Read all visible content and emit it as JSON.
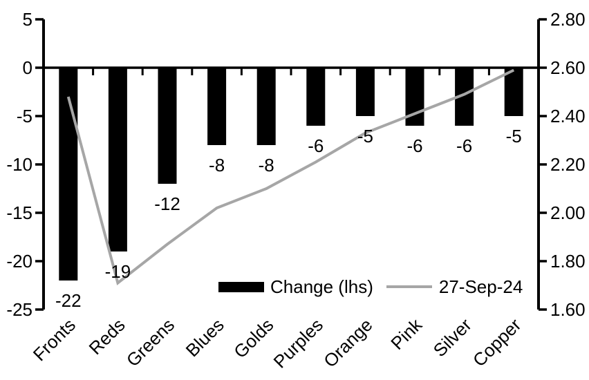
{
  "chart_data": {
    "type": "bar+line",
    "title": "",
    "categories": [
      "Fronts",
      "Reds",
      "Greens",
      "Blues",
      "Golds",
      "Purples",
      "Orange",
      "Pink",
      "Silver",
      "Copper"
    ],
    "series": [
      {
        "name": "Change (lhs)",
        "type": "bar",
        "axis": "left",
        "color": "#000000",
        "values": [
          -22,
          -19,
          -12,
          -8,
          -8,
          -6,
          -5,
          -6,
          -6,
          -5
        ],
        "labels": [
          "-22",
          "-19",
          "-12",
          "-8",
          "-8",
          "-6",
          "-5",
          "-6",
          "-6",
          "-5"
        ]
      },
      {
        "name": "27-Sep-24",
        "type": "line",
        "axis": "right",
        "color": "#a6a6a6",
        "values": [
          2.48,
          1.71,
          1.87,
          2.02,
          2.1,
          2.21,
          2.33,
          2.41,
          2.49,
          2.59
        ]
      }
    ],
    "left_axis": {
      "min": -25,
      "max": 5,
      "step": 5,
      "ticks": [
        "5",
        "0",
        "-5",
        "-10",
        "-15",
        "-20",
        "-25"
      ]
    },
    "right_axis": {
      "min": 1.6,
      "max": 2.8,
      "step": 0.2,
      "ticks": [
        "2.80",
        "2.60",
        "2.40",
        "2.20",
        "2.00",
        "1.80",
        "1.60"
      ]
    },
    "grid": "off",
    "legend_position": "bottom-inside"
  },
  "colors": {
    "bar": "#000000",
    "line": "#a6a6a6",
    "axis": "#000000",
    "text": "#000000",
    "background": "#ffffff"
  }
}
